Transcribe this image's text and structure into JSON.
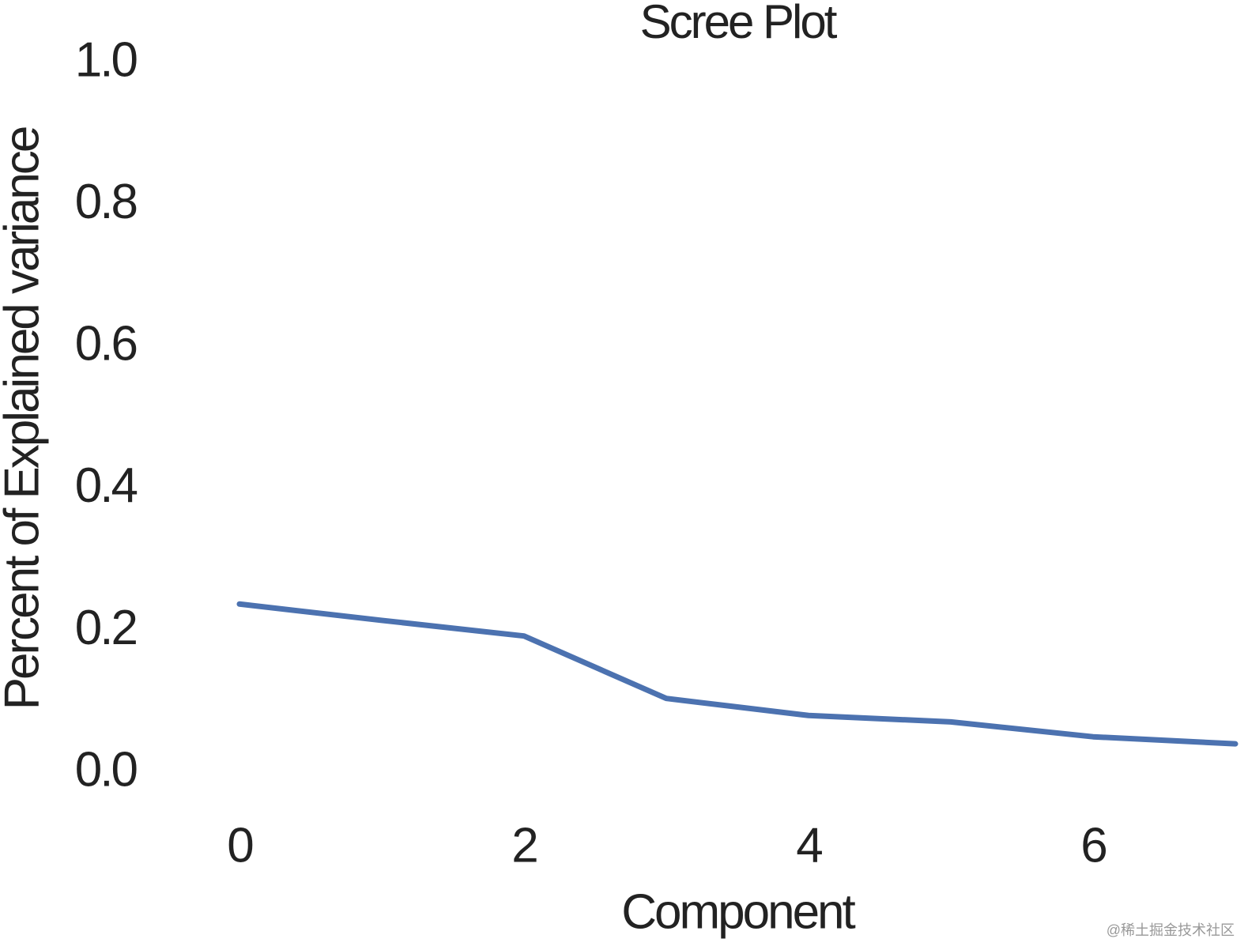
{
  "chart_data": {
    "type": "line",
    "title": "Scree Plot",
    "x_label": "Component",
    "y_label": "Percent of Explained variance",
    "x": [
      0,
      1,
      2,
      3,
      4,
      5,
      6,
      7
    ],
    "series": [
      {
        "name": "Explained variance",
        "color": "#4c72b0",
        "values": [
          0.238,
          0.215,
          0.193,
          0.105,
          0.081,
          0.072,
          0.051,
          0.041
        ]
      }
    ],
    "xlim": [
      -0.7,
      7
    ],
    "xticks": [
      0,
      2,
      4,
      6
    ],
    "ylim": [
      0,
      1
    ],
    "yticks": [
      {
        "value": 0,
        "label": "0.0"
      },
      0.2,
      0.4,
      0.6,
      0.8,
      {
        "value": 1,
        "label": "1.0"
      }
    ],
    "grid": false,
    "watermark": "@稀土掘金技术社区"
  }
}
